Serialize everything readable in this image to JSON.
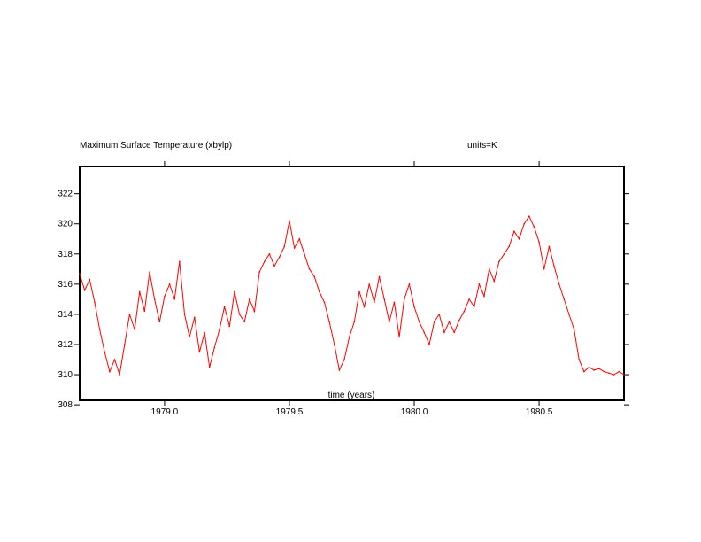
{
  "chart_data": {
    "type": "line",
    "title": "Maximum Surface Temperature (xbylp)",
    "units_label": "units=K",
    "xlabel": "time (years)",
    "ylabel": "",
    "xlim": [
      1978.66,
      1980.84
    ],
    "ylim": [
      308.3,
      323.8
    ],
    "x_ticks": [
      1979.0,
      1979.5,
      1980.0,
      1980.5
    ],
    "x_tick_labels": [
      "1979.0",
      "1979.5",
      "1980.0",
      "1980.5"
    ],
    "y_ticks": [
      308,
      310,
      312,
      314,
      316,
      318,
      320,
      322
    ],
    "y_tick_labels": [
      "308",
      "310",
      "312",
      "314",
      "316",
      "318",
      "320",
      "322"
    ],
    "grid": false,
    "series": [
      {
        "name": "Maximum Surface Temperature",
        "color": "#ff0000",
        "x": [
          1978.66,
          1978.68,
          1978.7,
          1978.72,
          1978.74,
          1978.76,
          1978.78,
          1978.8,
          1978.82,
          1978.84,
          1978.86,
          1978.88,
          1978.9,
          1978.92,
          1978.94,
          1978.96,
          1978.98,
          1979.0,
          1979.02,
          1979.04,
          1979.06,
          1979.08,
          1979.1,
          1979.12,
          1979.14,
          1979.16,
          1979.18,
          1979.2,
          1979.22,
          1979.24,
          1979.26,
          1979.28,
          1979.3,
          1979.32,
          1979.34,
          1979.36,
          1979.38,
          1979.4,
          1979.42,
          1979.44,
          1979.46,
          1979.48,
          1979.5,
          1979.52,
          1979.54,
          1979.56,
          1979.58,
          1979.6,
          1979.62,
          1979.64,
          1979.66,
          1979.68,
          1979.7,
          1979.72,
          1979.74,
          1979.76,
          1979.78,
          1979.8,
          1979.82,
          1979.84,
          1979.86,
          1979.88,
          1979.9,
          1979.92,
          1979.94,
          1979.96,
          1979.98,
          1980.0,
          1980.02,
          1980.04,
          1980.06,
          1980.08,
          1980.1,
          1980.12,
          1980.14,
          1980.16,
          1980.18,
          1980.2,
          1980.22,
          1980.24,
          1980.26,
          1980.28,
          1980.3,
          1980.32,
          1980.34,
          1980.36,
          1980.38,
          1980.4,
          1980.42,
          1980.44,
          1980.46,
          1980.48,
          1980.5,
          1980.52,
          1980.54,
          1980.56,
          1980.58,
          1980.6,
          1980.62,
          1980.64,
          1980.66,
          1980.68,
          1980.7,
          1980.72,
          1980.74,
          1980.76,
          1980.78,
          1980.8,
          1980.82,
          1980.84
        ],
        "values": [
          316.7,
          315.6,
          316.3,
          314.8,
          313.0,
          311.5,
          310.2,
          311.0,
          310.0,
          312.0,
          314.0,
          313.0,
          315.5,
          314.2,
          316.8,
          315.0,
          313.5,
          315.2,
          316.0,
          315.0,
          317.5,
          314.0,
          312.5,
          313.8,
          311.5,
          312.8,
          310.5,
          311.8,
          313.0,
          314.5,
          313.2,
          315.5,
          314.0,
          313.5,
          315.0,
          314.2,
          316.8,
          317.5,
          318.0,
          317.2,
          317.8,
          318.5,
          320.2,
          318.4,
          319.0,
          318.0,
          317.0,
          316.5,
          315.5,
          314.8,
          313.5,
          312.0,
          310.3,
          311.0,
          312.5,
          313.5,
          315.5,
          314.5,
          316.0,
          314.8,
          316.5,
          315.0,
          313.5,
          314.8,
          312.5,
          315.0,
          316.0,
          314.5,
          313.5,
          312.8,
          312.0,
          313.5,
          314.0,
          312.8,
          313.5,
          312.8,
          313.6,
          314.2,
          315.0,
          314.5,
          316.0,
          315.2,
          317.0,
          316.2,
          317.5,
          318.0,
          318.5,
          319.5,
          319.0,
          320.0,
          320.5,
          319.8,
          318.8,
          317.0,
          318.5,
          317.2,
          316.0,
          315.0,
          314.0,
          313.0,
          311.0,
          310.2,
          310.5,
          310.3,
          310.4,
          310.2,
          310.1,
          310.0,
          310.2,
          310.0
        ]
      }
    ]
  }
}
